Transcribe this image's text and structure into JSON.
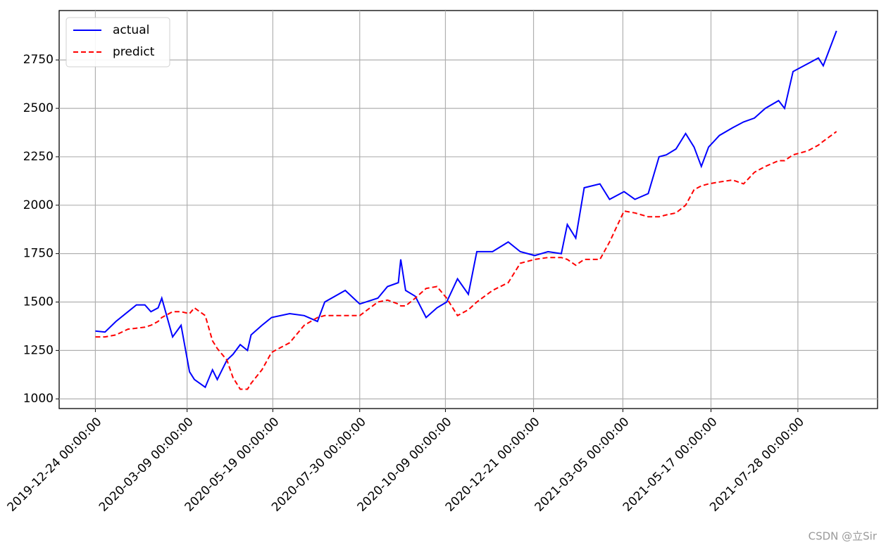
{
  "chart_data": {
    "type": "line",
    "x": [
      "2019-12-24",
      "2020-01-01",
      "2020-01-10",
      "2020-01-20",
      "2020-01-27",
      "2020-02-03",
      "2020-02-08",
      "2020-02-14",
      "2020-02-17",
      "2020-02-26",
      "2020-03-04",
      "2020-03-11",
      "2020-03-15",
      "2020-03-24",
      "2020-03-30",
      "2020-04-03",
      "2020-04-11",
      "2020-04-16",
      "2020-04-22",
      "2020-04-28",
      "2020-05-01",
      "2020-05-10",
      "2020-05-18",
      "2020-06-02",
      "2020-06-14",
      "2020-06-25",
      "2020-07-01",
      "2020-07-18",
      "2020-07-30",
      "2020-08-14",
      "2020-08-22",
      "2020-08-31",
      "2020-09-02",
      "2020-09-06",
      "2020-09-14",
      "2020-09-23",
      "2020-10-02",
      "2020-10-10",
      "2020-10-19",
      "2020-10-28",
      "2020-11-04",
      "2020-11-17",
      "2020-11-30",
      "2020-12-10",
      "2020-12-22",
      "2021-01-02",
      "2021-01-13",
      "2021-01-18",
      "2021-01-25",
      "2021-02-01",
      "2021-02-14",
      "2021-02-22",
      "2021-03-06",
      "2021-03-15",
      "2021-03-26",
      "2021-04-04",
      "2021-04-10",
      "2021-04-18",
      "2021-04-26",
      "2021-05-03",
      "2021-05-09",
      "2021-05-15",
      "2021-05-24",
      "2021-06-04",
      "2021-06-13",
      "2021-06-22",
      "2021-07-01",
      "2021-07-12",
      "2021-07-17",
      "2021-07-24",
      "2021-08-05",
      "2021-08-14",
      "2021-08-18",
      "2021-08-29"
    ],
    "series": [
      {
        "name": "actual",
        "color": "#0000ff",
        "dash": "solid",
        "values": [
          1350,
          1345,
          1400,
          1450,
          1485,
          1485,
          1450,
          1470,
          1520,
          1320,
          1380,
          1140,
          1100,
          1060,
          1150,
          1100,
          1200,
          1230,
          1280,
          1250,
          1330,
          1380,
          1420,
          1440,
          1430,
          1400,
          1500,
          1560,
          1490,
          1520,
          1580,
          1600,
          1720,
          1560,
          1530,
          1420,
          1470,
          1500,
          1620,
          1540,
          1760,
          1760,
          1810,
          1760,
          1740,
          1760,
          1750,
          1900,
          1830,
          2090,
          2110,
          2030,
          2070,
          2030,
          2060,
          2250,
          2260,
          2290,
          2370,
          2300,
          2200,
          2300,
          2360,
          2400,
          2430,
          2450,
          2500,
          2540,
          2500,
          2690,
          2730,
          2760,
          2720,
          2900
        ]
      },
      {
        "name": "predict",
        "color": "#ff0000",
        "dash": "dashed",
        "values": [
          1320,
          1320,
          1330,
          1360,
          1365,
          1370,
          1380,
          1400,
          1420,
          1450,
          1450,
          1440,
          1470,
          1430,
          1300,
          1260,
          1200,
          1110,
          1050,
          1050,
          1080,
          1150,
          1240,
          1290,
          1380,
          1420,
          1430,
          1430,
          1430,
          1500,
          1510,
          1490,
          1480,
          1480,
          1520,
          1570,
          1580,
          1520,
          1430,
          1460,
          1500,
          1560,
          1600,
          1700,
          1720,
          1730,
          1730,
          1720,
          1690,
          1720,
          1720,
          1810,
          1970,
          1960,
          1940,
          1940,
          1950,
          1960,
          2000,
          2080,
          2100,
          2110,
          2120,
          2130,
          2110,
          2170,
          2200,
          2230,
          2230,
          2260,
          2280,
          2310,
          2330,
          2380
        ]
      }
    ],
    "xlim": [
      "2019-11-24 00:00:00",
      "2021-10-02 00:00:00"
    ],
    "xticks": [
      "2019-12-24 00:00:00",
      "2020-03-09 00:00:00",
      "2020-05-19 00:00:00",
      "2020-07-30 00:00:00",
      "2020-10-09 00:00:00",
      "2020-12-21 00:00:00",
      "2021-03-05 00:00:00",
      "2021-05-17 00:00:00",
      "2021-07-28 00:00:00"
    ],
    "ylim": [
      950,
      3005
    ],
    "yticks": [
      1000,
      1250,
      1500,
      1750,
      2000,
      2250,
      2500,
      2750
    ],
    "grid": true,
    "legend": "upper-left"
  },
  "watermark": "CSDN @立Sir"
}
